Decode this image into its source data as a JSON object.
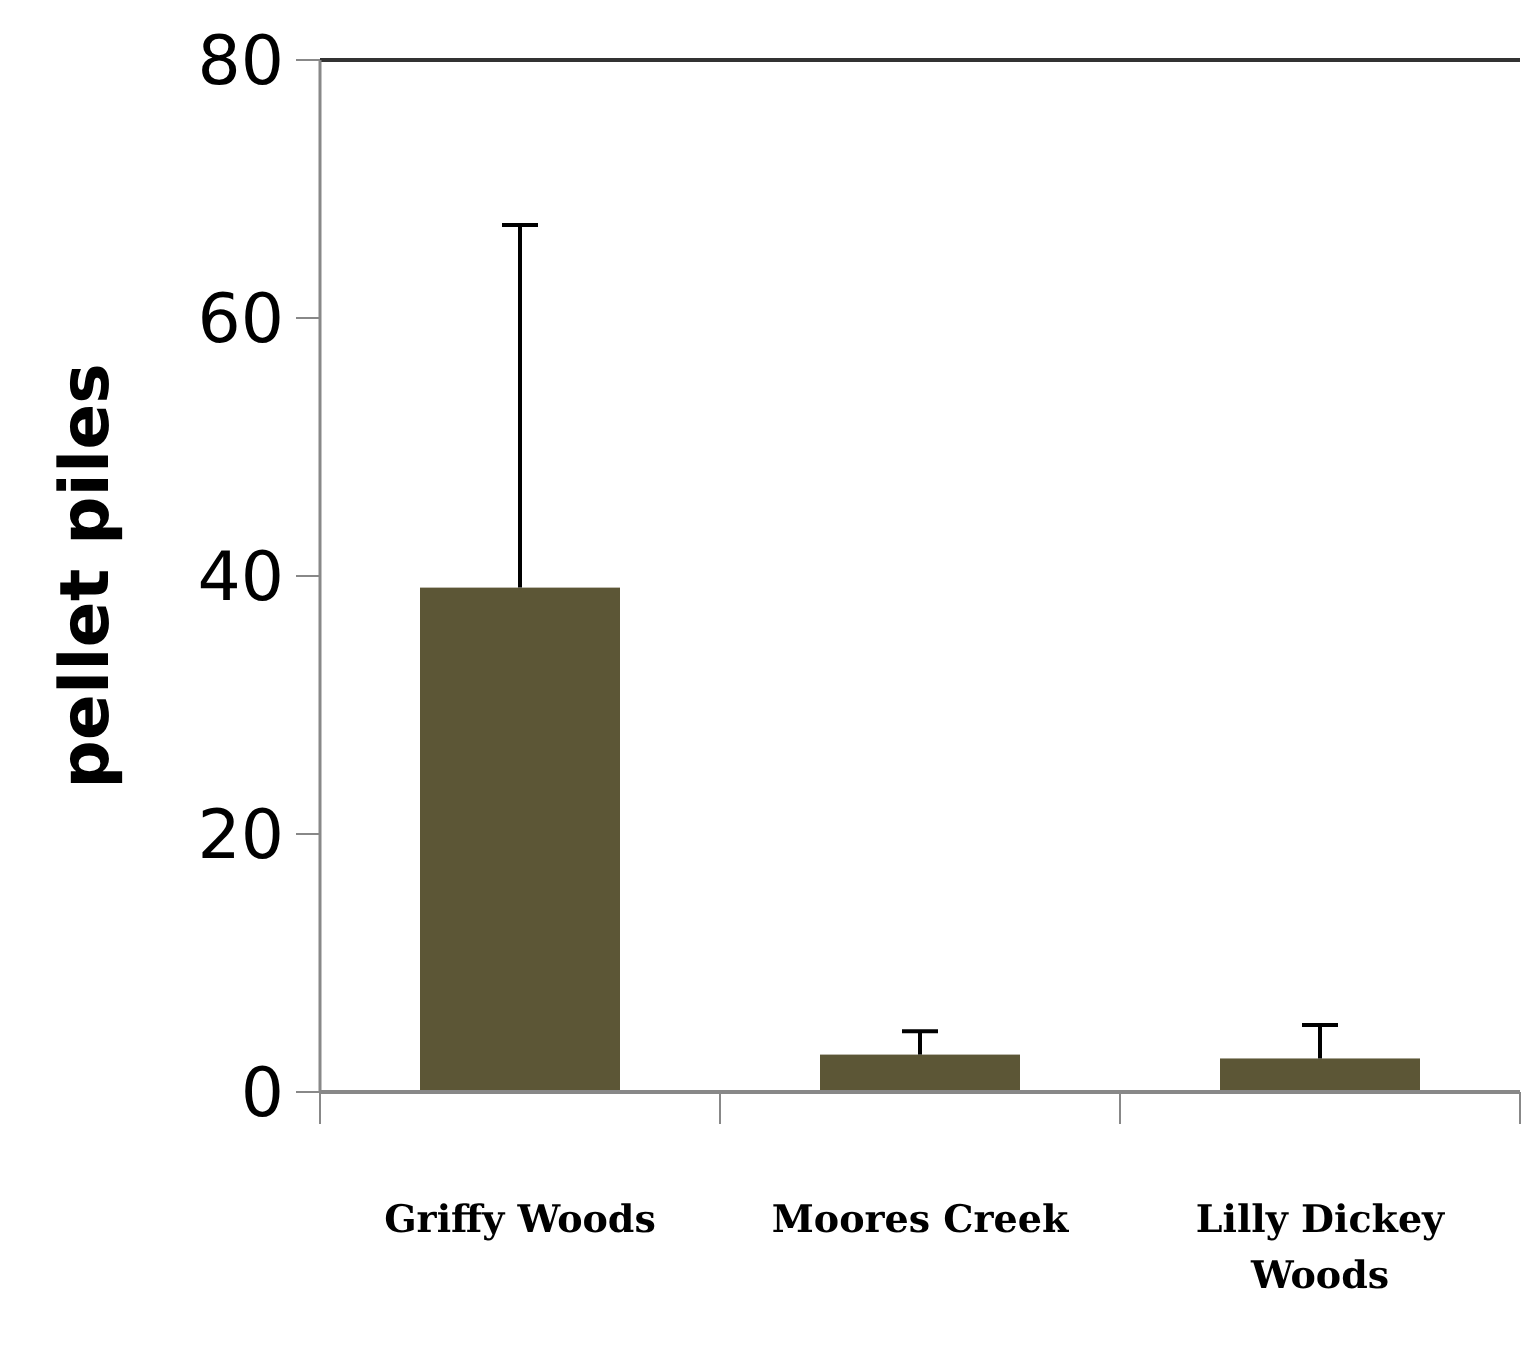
{
  "chart_data": {
    "type": "bar",
    "ylabel": "pellet piles",
    "categories": [
      "Griffy Woods",
      "Moores Creek",
      "Lilly Dickey Woods"
    ],
    "values": [
      39.1,
      2.9,
      2.6
    ],
    "errors": [
      [
        39.1,
        67.2
      ],
      [
        2.9,
        4.7
      ],
      [
        2.6,
        5.2
      ]
    ],
    "color": "#5c5636",
    "ylim": [
      0,
      80
    ],
    "yticks": [
      0,
      20,
      40,
      60,
      80
    ],
    "grid": false
  }
}
